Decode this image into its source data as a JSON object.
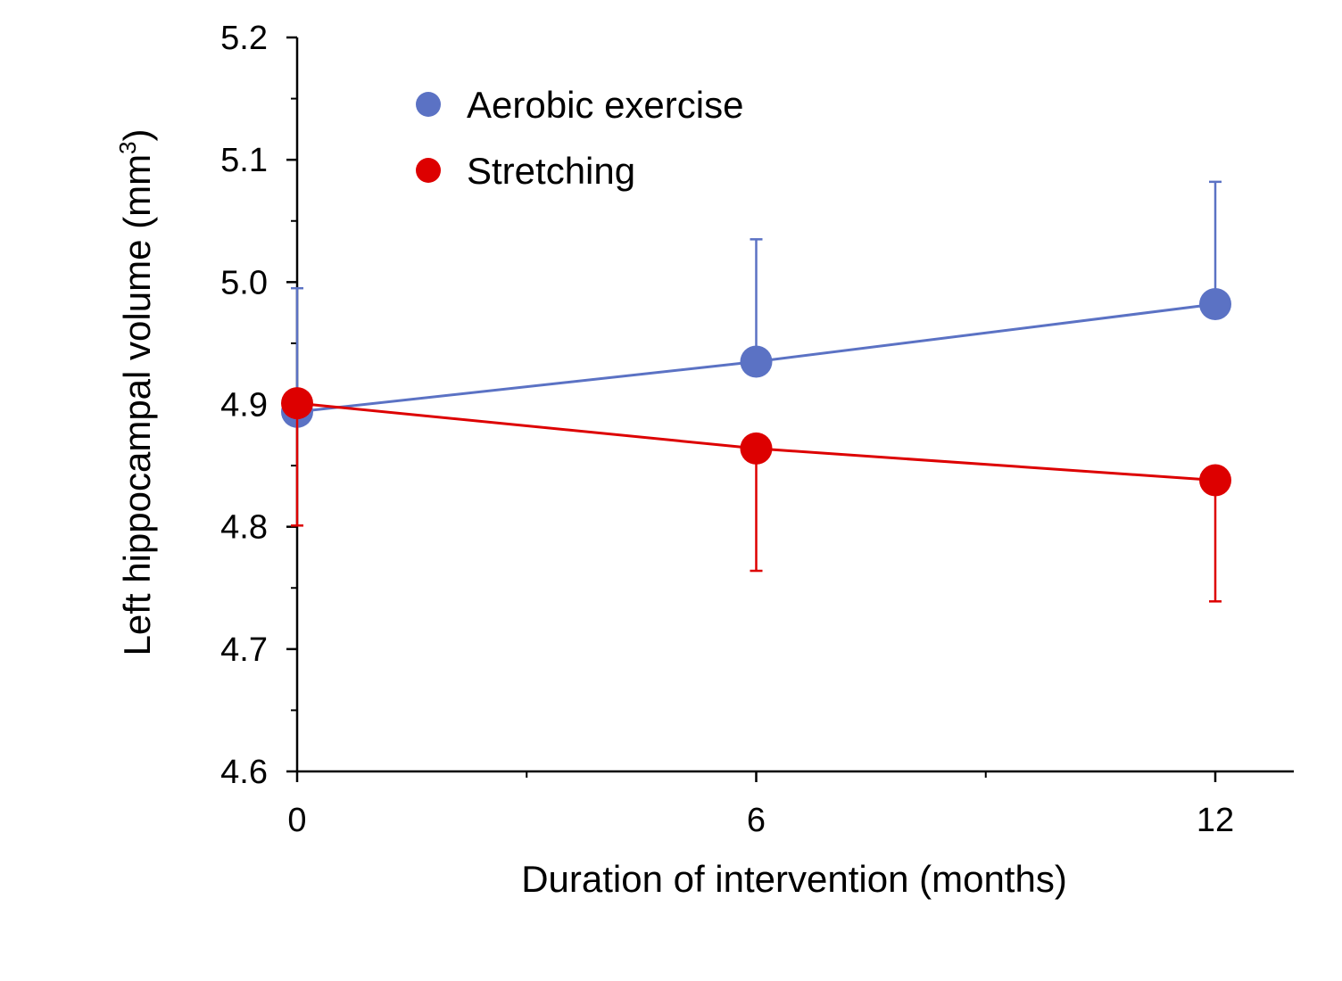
{
  "chart_data": {
    "type": "line",
    "xlabel": "Duration of intervention (months)",
    "ylabel_main": "Left hippocampal volume (mm",
    "ylabel_sup": "3",
    "ylabel_close": ")",
    "x": [
      0,
      6,
      12
    ],
    "x_ticks": [
      0,
      6,
      12
    ],
    "x_tick_labels": [
      "0",
      "6",
      "12"
    ],
    "x_minor_ticks": [
      3,
      9
    ],
    "xlim": [
      0,
      13.0
    ],
    "y_ticks": [
      4.6,
      4.7,
      4.8,
      4.9,
      5.0,
      5.1,
      5.2
    ],
    "y_tick_labels": [
      "4.6",
      "4.7",
      "4.8",
      "4.9",
      "5.0",
      "5.1",
      "5.2"
    ],
    "y_minor_ticks": [
      4.65,
      4.75,
      4.85,
      4.95,
      5.05,
      5.15
    ],
    "ylim": [
      4.6,
      5.2
    ],
    "grid": false,
    "legend_position": "top-left",
    "series": [
      {
        "name": "Aerobic exercise",
        "color": "#5b72c4",
        "values": [
          4.894,
          4.935,
          4.982
        ],
        "error_upper": [
          4.995,
          5.035,
          5.082
        ]
      },
      {
        "name": "Stretching",
        "color": "#dd0000",
        "values": [
          4.901,
          4.864,
          4.838
        ],
        "error_lower": [
          4.801,
          4.764,
          4.739
        ]
      }
    ]
  }
}
